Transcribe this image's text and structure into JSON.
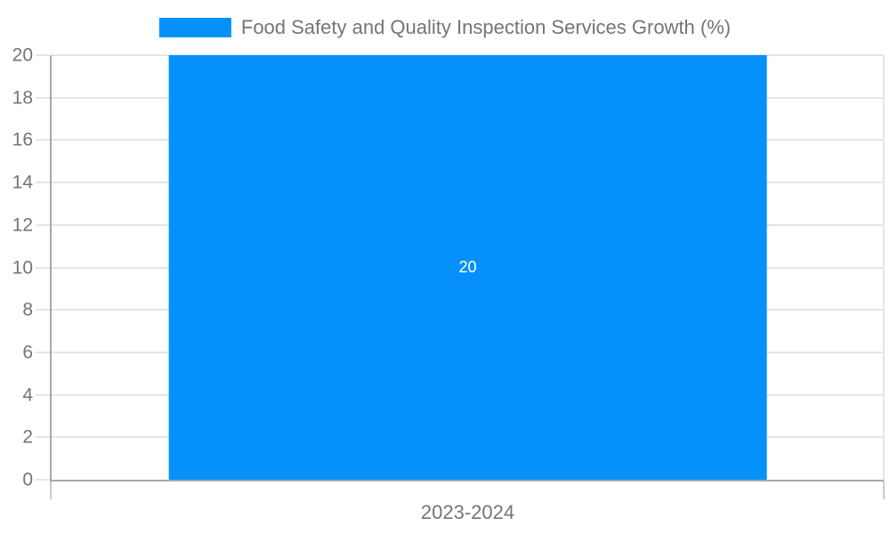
{
  "chart_data": {
    "type": "bar",
    "title": "",
    "legend": {
      "position": "top-center",
      "items": [
        {
          "label": "Food Safety and Quality Inspection Services Growth (%)",
          "color": "#0691FA"
        }
      ]
    },
    "categories": [
      "2023-2024"
    ],
    "series": [
      {
        "name": "Food Safety and Quality Inspection Services Growth (%)",
        "values": [
          20
        ],
        "data_labels": [
          20
        ],
        "color": "#0691FA"
      }
    ],
    "xlabel": "",
    "ylabel": "",
    "ylim": [
      0,
      20
    ],
    "ytick_step": 2,
    "yticks": [
      0,
      2,
      4,
      6,
      8,
      10,
      12,
      14,
      16,
      18,
      20
    ],
    "grid": "horizontal",
    "colors": {
      "bar": "#0691FA",
      "grid": "#e5e5e5",
      "axis": "#a9a9a9",
      "tick": "#c9c9c9",
      "text": "#757575",
      "bar_label": "#ffffff",
      "background": "#ffffff"
    }
  }
}
